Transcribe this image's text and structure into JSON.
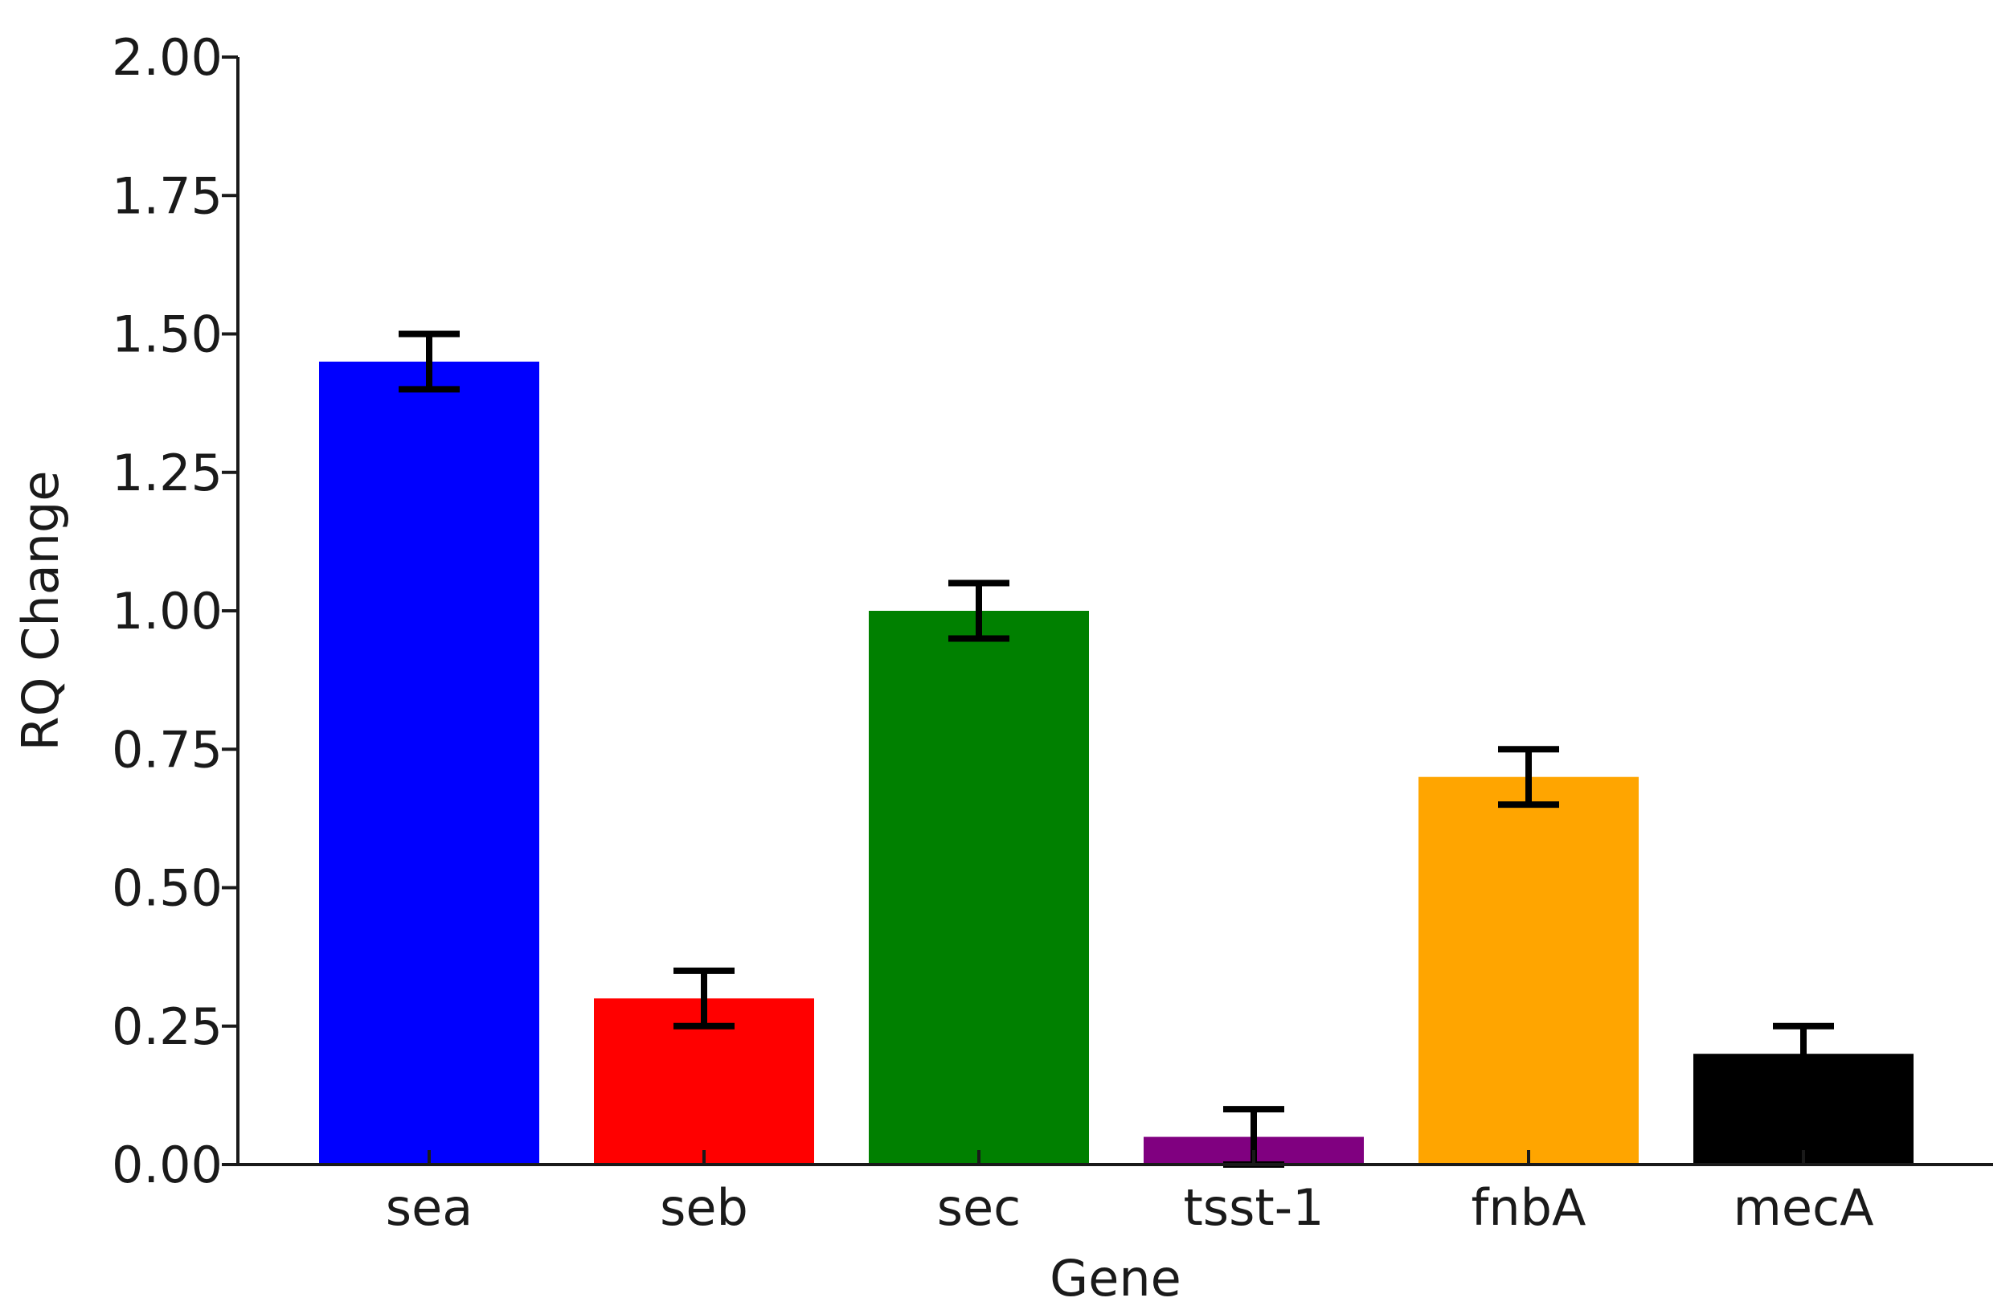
{
  "chart_data": {
    "type": "bar",
    "title": "",
    "xlabel": "Gene",
    "ylabel": "RQ Change",
    "categories": [
      "sea",
      "seb",
      "sec",
      "tsst-1",
      "fnbA",
      "mecA"
    ],
    "values": [
      1.45,
      0.3,
      1.0,
      0.05,
      0.7,
      0.2
    ],
    "errors": [
      0.05,
      0.05,
      0.05,
      0.05,
      0.05,
      0.05
    ],
    "colors": [
      "#0000ff",
      "#ff0000",
      "#008000",
      "#800080",
      "#ffa500",
      "#000000"
    ],
    "ylim": [
      0,
      2.0
    ],
    "yticks": [
      "0.00",
      "0.25",
      "0.50",
      "0.75",
      "1.00",
      "1.25",
      "1.50",
      "1.75",
      "2.00"
    ],
    "grid": false,
    "legend": "none"
  }
}
